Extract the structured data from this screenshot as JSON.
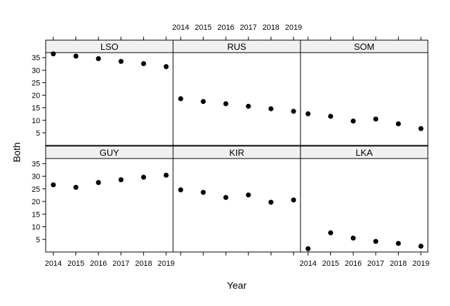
{
  "chart_data": {
    "type": "scatter",
    "layout": "lattice 3x2",
    "xlabel": "Year",
    "ylabel": "Both",
    "x": [
      2014,
      2015,
      2016,
      2017,
      2018,
      2019
    ],
    "xlim": [
      2014,
      2019
    ],
    "ylim": [
      0,
      37
    ],
    "yticks": [
      5,
      10,
      15,
      20,
      25,
      30,
      35
    ],
    "strip_color": "#f0f0f0",
    "point_color": "#000000",
    "panels": [
      {
        "name": "LSO",
        "values": [
          36.5,
          35.6,
          34.6,
          33.5,
          32.6,
          31.4
        ]
      },
      {
        "name": "RUS",
        "values": [
          18.6,
          17.5,
          16.6,
          15.6,
          14.6,
          13.6
        ]
      },
      {
        "name": "SOM",
        "values": [
          12.6,
          11.6,
          9.7,
          10.5,
          8.6,
          6.7
        ]
      },
      {
        "name": "GUY",
        "values": [
          26.6,
          25.6,
          27.5,
          28.6,
          29.6,
          30.4
        ]
      },
      {
        "name": "KIR",
        "values": [
          24.6,
          23.6,
          21.6,
          22.6,
          19.7,
          20.6
        ]
      },
      {
        "name": "LKA",
        "values": [
          1.3,
          7.6,
          5.5,
          4.2,
          3.4,
          2.3
        ]
      }
    ]
  }
}
